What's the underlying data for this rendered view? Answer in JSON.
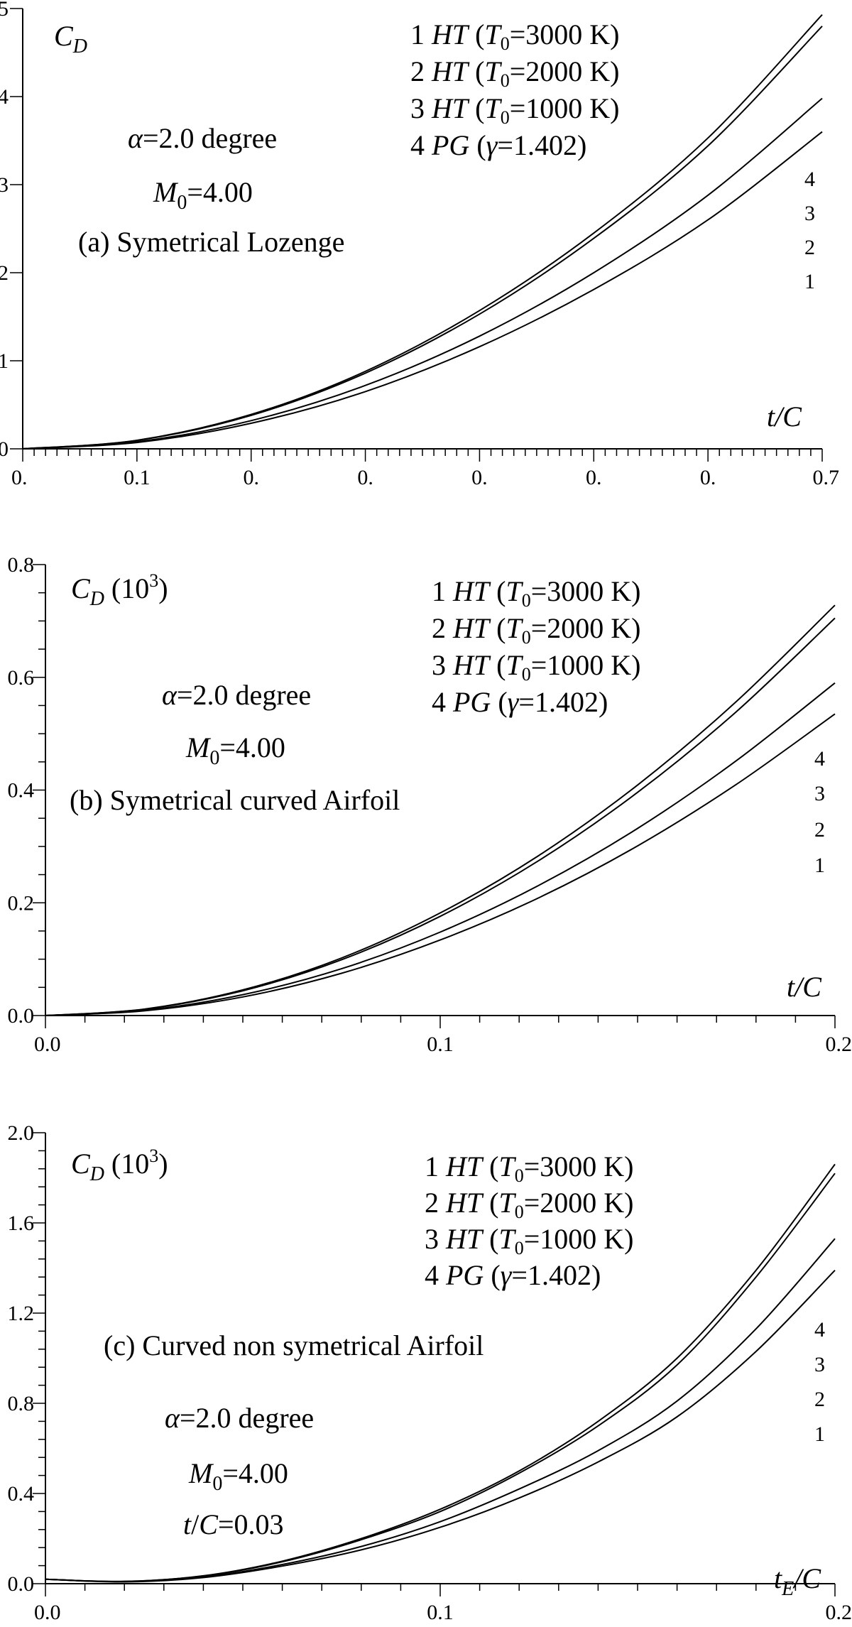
{
  "chart_data": [
    {
      "id": "a",
      "type": "line",
      "xlim": [
        0,
        0.7
      ],
      "ylim": [
        0,
        5
      ],
      "x_tick_labels": [
        "0.",
        "0.1",
        "0.",
        "0.",
        "0.",
        "0.",
        "0.",
        "0.7"
      ],
      "y_tick_labels": [
        "0",
        "1",
        "2",
        "3",
        "4",
        "5"
      ],
      "xlabel": "t/C",
      "ylabel": "C_D",
      "ylabel_suffix": "",
      "legend": [
        "1 HT (T0=3000 K)",
        "2 HT (T0=2000 K)",
        "3 HT (T0=1000 K)",
        "4 PG (γ=1.402)"
      ],
      "legend_placement": "top-right",
      "curve_labels": [
        "4",
        "3",
        "2",
        "1"
      ],
      "annotations": [
        "α=2.0 degree",
        "M0=4.00",
        "(a)   Symetrical Lozenge"
      ],
      "series": [
        {
          "name": "1",
          "x": [
            0.0,
            0.1,
            0.2,
            0.3,
            0.4,
            0.5,
            0.6,
            0.7
          ],
          "y": [
            0.0,
            0.097,
            0.39,
            0.88,
            1.57,
            2.45,
            3.53,
            4.93
          ]
        },
        {
          "name": "2",
          "x": [
            0.0,
            0.1,
            0.2,
            0.3,
            0.4,
            0.5,
            0.6,
            0.7
          ],
          "y": [
            0.0,
            0.095,
            0.38,
            0.86,
            1.53,
            2.39,
            3.44,
            4.8
          ]
        },
        {
          "name": "3",
          "x": [
            0.0,
            0.1,
            0.2,
            0.3,
            0.4,
            0.5,
            0.6,
            0.7
          ],
          "y": [
            0.0,
            0.08,
            0.32,
            0.72,
            1.28,
            2.0,
            2.88,
            3.98
          ]
        },
        {
          "name": "4",
          "x": [
            0.0,
            0.1,
            0.2,
            0.3,
            0.4,
            0.5,
            0.6,
            0.7
          ],
          "y": [
            0.0,
            0.072,
            0.29,
            0.65,
            1.16,
            1.81,
            2.6,
            3.6
          ]
        }
      ]
    },
    {
      "id": "b",
      "type": "line",
      "xlim": [
        0,
        0.2
      ],
      "ylim": [
        0,
        0.8
      ],
      "x_tick_labels": [
        "0.0",
        "0.1",
        "0.2"
      ],
      "y_tick_labels": [
        "0.0",
        "0.2",
        "0.4",
        "0.6",
        "0.8"
      ],
      "xlabel": "t/C",
      "ylabel": "C_D",
      "ylabel_suffix": "(10^3)",
      "legend": [
        "1 HT (T0=3000 K)",
        "2 HT (T0=2000 K)",
        "3 HT (T0=1000 K)",
        "4 PG (γ=1.402)"
      ],
      "legend_placement": "top-right",
      "curve_labels": [
        "4",
        "3",
        "2",
        "1"
      ],
      "annotations": [
        "α=2.0 degree",
        "M0=4.00",
        "(b)   Symetrical curved Airfoil"
      ],
      "series": [
        {
          "name": "1",
          "x": [
            0.0,
            0.025,
            0.05,
            0.075,
            0.1,
            0.125,
            0.15,
            0.175,
            0.2
          ],
          "y": [
            0.0,
            0.0114,
            0.0455,
            0.102,
            0.182,
            0.284,
            0.409,
            0.557,
            0.728
          ]
        },
        {
          "name": "2",
          "x": [
            0.0,
            0.025,
            0.05,
            0.075,
            0.1,
            0.125,
            0.15,
            0.175,
            0.2
          ],
          "y": [
            0.0,
            0.011,
            0.044,
            0.099,
            0.176,
            0.275,
            0.396,
            0.539,
            0.705
          ]
        },
        {
          "name": "3",
          "x": [
            0.0,
            0.025,
            0.05,
            0.075,
            0.1,
            0.125,
            0.15,
            0.175,
            0.2
          ],
          "y": [
            0.0,
            0.0092,
            0.037,
            0.083,
            0.148,
            0.231,
            0.332,
            0.452,
            0.59
          ]
        },
        {
          "name": "4",
          "x": [
            0.0,
            0.025,
            0.05,
            0.075,
            0.1,
            0.125,
            0.15,
            0.175,
            0.2
          ],
          "y": [
            0.0,
            0.0083,
            0.033,
            0.075,
            0.134,
            0.209,
            0.301,
            0.41,
            0.535
          ]
        }
      ]
    },
    {
      "id": "c",
      "type": "line",
      "xlim": [
        0,
        0.2
      ],
      "ylim": [
        0,
        2.0
      ],
      "x_tick_labels": [
        "0.0",
        "0.1",
        "0.2"
      ],
      "y_tick_labels": [
        "0.0",
        "0.4",
        "0.8",
        "1.2",
        "1.6",
        "2.0"
      ],
      "xlabel": "t_E/C",
      "ylabel": "C_D",
      "ylabel_suffix": "(10^3)",
      "legend": [
        "1 HT (T0=3000 K)",
        "2 HT (T0=2000 K)",
        "3 HT (T0=1000 K)",
        "4 PG (γ=1.402)"
      ],
      "legend_placement": "top-right",
      "curve_labels": [
        "4",
        "3",
        "2",
        "1"
      ],
      "annotations": [
        "(c)   Curved non symetrical Airfoil",
        "α=2.0 degree",
        "M0=4.00",
        "t/C=0.03"
      ],
      "series": [
        {
          "name": "1",
          "x": [
            0.0,
            0.02,
            0.04,
            0.06,
            0.08,
            0.1,
            0.12,
            0.14,
            0.16,
            0.18,
            0.2
          ],
          "y": [
            0.02,
            0.01,
            0.035,
            0.1,
            0.2,
            0.33,
            0.5,
            0.72,
            1.0,
            1.39,
            1.86
          ]
        },
        {
          "name": "2",
          "x": [
            0.0,
            0.02,
            0.04,
            0.06,
            0.08,
            0.1,
            0.12,
            0.14,
            0.16,
            0.18,
            0.2
          ],
          "y": [
            0.02,
            0.01,
            0.034,
            0.097,
            0.195,
            0.32,
            0.49,
            0.7,
            0.97,
            1.36,
            1.82
          ]
        },
        {
          "name": "3",
          "x": [
            0.0,
            0.02,
            0.04,
            0.06,
            0.08,
            0.1,
            0.12,
            0.14,
            0.16,
            0.18,
            0.2
          ],
          "y": [
            0.02,
            0.009,
            0.03,
            0.085,
            0.165,
            0.275,
            0.42,
            0.59,
            0.81,
            1.13,
            1.53
          ]
        },
        {
          "name": "4",
          "x": [
            0.0,
            0.02,
            0.04,
            0.06,
            0.08,
            0.1,
            0.12,
            0.14,
            0.16,
            0.18,
            0.2
          ],
          "y": [
            0.02,
            0.008,
            0.027,
            0.078,
            0.15,
            0.25,
            0.38,
            0.54,
            0.74,
            1.03,
            1.39
          ]
        }
      ]
    }
  ]
}
